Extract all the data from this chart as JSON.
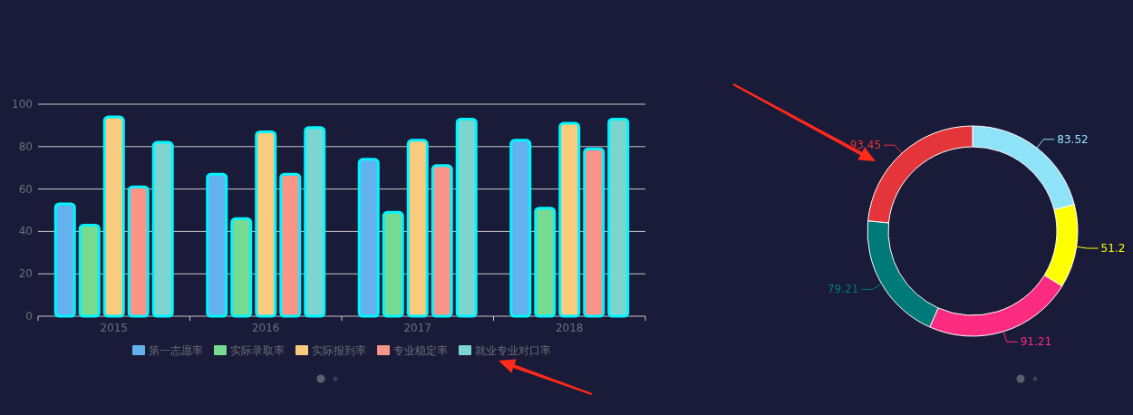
{
  "chart_data": [
    {
      "type": "bar",
      "categories": [
        "2015",
        "2016",
        "2017",
        "2018"
      ],
      "series": [
        {
          "name": "第一志愿率",
          "color": "#63b2ee",
          "values": [
            53,
            67,
            74,
            83
          ]
        },
        {
          "name": "实际录取率",
          "color": "#76da91",
          "values": [
            43,
            46,
            49,
            51
          ]
        },
        {
          "name": "实际报到率",
          "color": "#f8cb7f",
          "values": [
            94,
            87,
            83,
            91
          ]
        },
        {
          "name": "专业稳定率",
          "color": "#f89588",
          "values": [
            61,
            67,
            71,
            79
          ]
        },
        {
          "name": "就业专业对口率",
          "color": "#7cd6cf",
          "values": [
            82,
            89,
            93,
            93
          ]
        }
      ],
      "ylim": [
        0,
        100
      ],
      "yticks": [
        0,
        20,
        40,
        60,
        80,
        100
      ],
      "grid": "y",
      "legend": "bottom"
    },
    {
      "type": "donut",
      "categories": [
        null,
        null,
        null,
        null,
        null
      ],
      "values": [
        83.52,
        51.2,
        91.21,
        79.21,
        93.45
      ],
      "colors": [
        "#8fe3f8",
        "#ffff00",
        "#fb2c80",
        "#007a78",
        "#e4363a"
      ],
      "data_labels": true
    }
  ]
}
